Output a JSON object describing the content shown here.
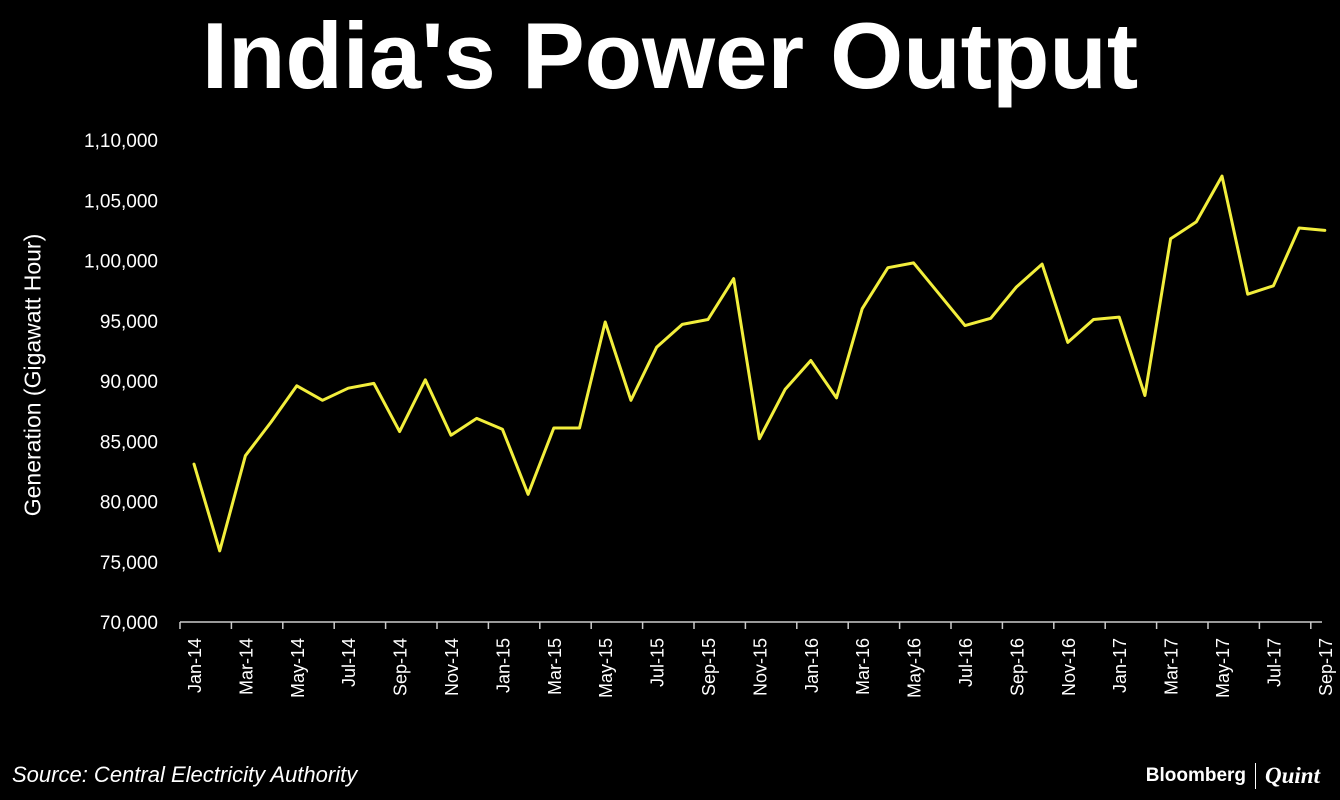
{
  "colors": {
    "background": "#000000",
    "text": "#ffffff",
    "line": "#f2ee3c",
    "axis": "#cccccc"
  },
  "chart_data": {
    "type": "line",
    "title": "India's Power Output",
    "ylabel": "Generation (Gigawatt Hour)",
    "xlabel": "",
    "ylim": [
      70000,
      110000
    ],
    "yticks": [
      70000,
      75000,
      80000,
      85000,
      90000,
      95000,
      100000,
      105000,
      110000
    ],
    "ytick_labels": [
      "70,000",
      "75,000",
      "80,000",
      "85,000",
      "90,000",
      "95,000",
      "1,00,000",
      "1,05,000",
      "1,10,000"
    ],
    "grid": false,
    "x": [
      "Jan-14",
      "Feb-14",
      "Mar-14",
      "Apr-14",
      "May-14",
      "Jun-14",
      "Jul-14",
      "Aug-14",
      "Sep-14",
      "Oct-14",
      "Nov-14",
      "Dec-14",
      "Jan-15",
      "Feb-15",
      "Mar-15",
      "Apr-15",
      "May-15",
      "Jun-15",
      "Jul-15",
      "Aug-15",
      "Sep-15",
      "Oct-15",
      "Nov-15",
      "Dec-15",
      "Jan-16",
      "Feb-16",
      "Mar-16",
      "Apr-16",
      "May-16",
      "Jun-16",
      "Jul-16",
      "Aug-16",
      "Sep-16",
      "Oct-16",
      "Nov-16",
      "Dec-16",
      "Jan-17",
      "Feb-17",
      "Mar-17",
      "Apr-17",
      "May-17",
      "Jun-17",
      "Jul-17",
      "Aug-17",
      "Sep-17"
    ],
    "xtick_labels": [
      "Jan-14",
      "Mar-14",
      "May-14",
      "Jul-14",
      "Sep-14",
      "Nov-14",
      "Jan-15",
      "Mar-15",
      "May-15",
      "Jul-15",
      "Sep-15",
      "Nov-15",
      "Jan-16",
      "Mar-16",
      "May-16",
      "Jul-16",
      "Sep-16",
      "Nov-16",
      "Jan-17",
      "Mar-17",
      "May-17",
      "Jul-17",
      "Sep-17"
    ],
    "series": [
      {
        "name": "Generation",
        "values": [
          83100,
          75900,
          83800,
          86600,
          89600,
          88400,
          89400,
          89800,
          85800,
          90100,
          85500,
          86900,
          86000,
          80600,
          86100,
          86100,
          94900,
          88400,
          92800,
          94700,
          95100,
          98500,
          85200,
          89300,
          91700,
          88600,
          96000,
          99400,
          99800,
          97200,
          94600,
          95200,
          97800,
          99700,
          93200,
          95100,
          95300,
          88800,
          101800,
          103200,
          107000,
          97200,
          97900,
          102700,
          102500
        ]
      }
    ]
  },
  "source": "Source: Central Electricity Authority",
  "logo": {
    "brand": "Bloomberg",
    "sub": "Quint"
  }
}
